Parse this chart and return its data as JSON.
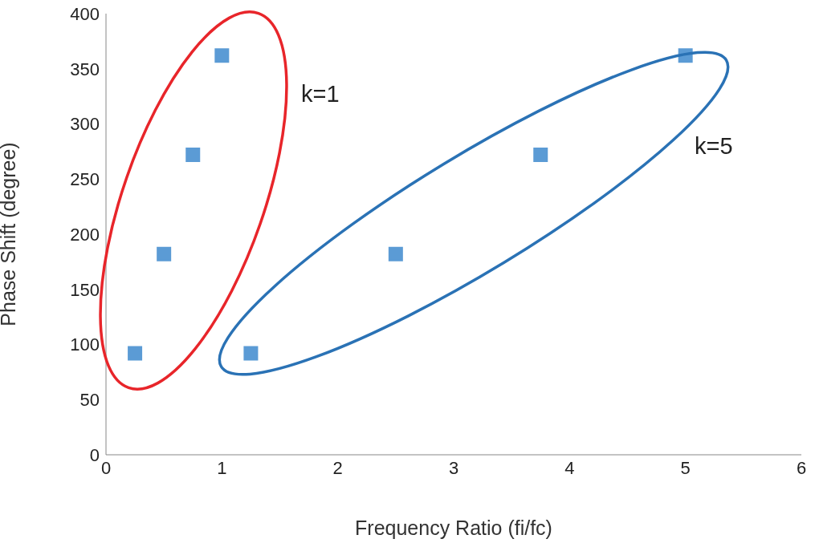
{
  "chart_data": {
    "type": "scatter",
    "xlabel": "Frequency Ratio (fi/fc)",
    "ylabel": "Phase Shift (degree)",
    "x": [
      0.25,
      0.5,
      0.75,
      1.0,
      1.25,
      2.5,
      3.75,
      5.0
    ],
    "series": [
      {
        "color": "#5b9bd5",
        "values": [
          92,
          182,
          272,
          362,
          92,
          182,
          272,
          362
        ]
      }
    ],
    "xlim": [
      0,
      6
    ],
    "xticks": [
      0,
      1,
      2,
      3,
      4,
      5,
      6
    ],
    "ylim": [
      0,
      400
    ],
    "yticks": [
      0,
      50,
      100,
      150,
      200,
      250,
      300,
      350,
      400
    ],
    "marker": "square",
    "grid": false,
    "legend": false,
    "annotations": [
      "k=1",
      "k=5"
    ]
  }
}
